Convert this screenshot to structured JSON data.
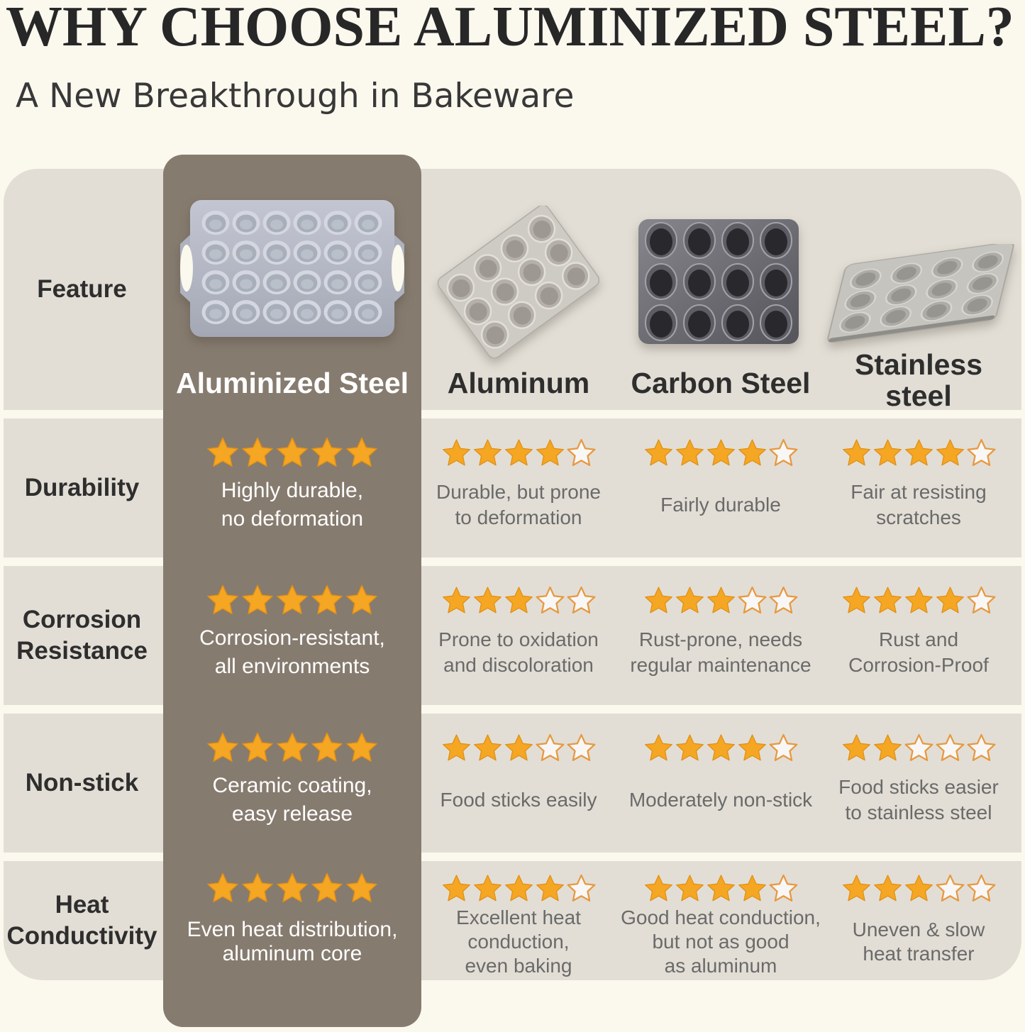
{
  "title": "WHY CHOOSE ALUMINIZED STEEL?",
  "subtitle": "A New Breakthrough in Bakeware",
  "colors": {
    "background": "#FBF8EE",
    "band": "#E2DED5",
    "highlight_column": "#867B6F",
    "star_fill": "#F5A622",
    "star_stroke": "#E08F15",
    "empty_star_fill": "rgba(255,255,255,0.75)",
    "empty_star_stroke": "#E79840",
    "title_text": "#272727",
    "subtitle_text": "#383838",
    "feature_text": "#2E2E2E",
    "note_text": "#6A6A6A",
    "highlight_note_text": "#FFFFFF"
  },
  "header": {
    "feature_label": "Feature",
    "images": [
      {
        "name": "aluminized-steel-24-cup-muffin-pan"
      },
      {
        "name": "aluminum-12-cup-muffin-pan"
      },
      {
        "name": "carbon-steel-12-cup-muffin-pan"
      },
      {
        "name": "stainless-steel-12-cup-muffin-pan"
      }
    ]
  },
  "chart_data": {
    "type": "table",
    "title": "WHY CHOOSE ALUMINIZED STEEL?",
    "subtitle": "A New Breakthrough in Bakeware",
    "feature_header": "Feature",
    "rating_scale": 5,
    "columns": [
      "Aluminized Steel",
      "Aluminum",
      "Carbon Steel",
      "Stainless steel"
    ],
    "highlight_column": "Aluminized Steel",
    "rows": [
      {
        "feature": "Durability",
        "ratings": [
          5,
          4,
          4,
          4
        ],
        "notes": [
          "Highly durable,\nno deformation",
          "Durable, but prone\nto deformation",
          "Fairly durable",
          "Fair at resisting\nscratches"
        ]
      },
      {
        "feature": "Corrosion Resistance",
        "ratings": [
          5,
          3,
          3,
          4
        ],
        "notes": [
          "Corrosion-resistant,\nall environments",
          "Prone to oxidation\nand discoloration",
          "Rust-prone, needs\nregular maintenance",
          "Rust and\nCorrosion-Proof"
        ]
      },
      {
        "feature": "Non-stick",
        "ratings": [
          5,
          3,
          4,
          2
        ],
        "notes": [
          "Ceramic coating,\neasy release",
          "Food sticks easily",
          "Moderately non-stick",
          "Food sticks easier\nto stainless steel"
        ]
      },
      {
        "feature": "Heat Conductivity",
        "ratings": [
          5,
          4,
          4,
          3
        ],
        "notes": [
          "Even heat distribution,\naluminum core",
          "Excellent heat\nconduction,\neven baking",
          "Good heat conduction,\nbut not as good\nas aluminum",
          "Uneven & slow\nheat transfer"
        ]
      }
    ]
  }
}
